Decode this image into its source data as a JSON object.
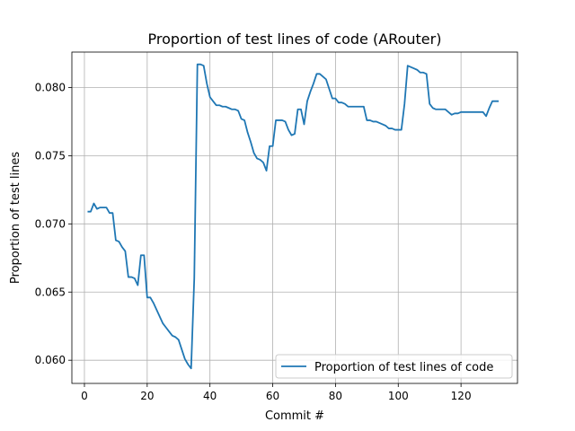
{
  "chart_data": {
    "type": "line",
    "title": "Proportion of test lines of code (ARouter)",
    "xlabel": "Commit #",
    "ylabel": "Proportion of test lines",
    "xlim": [
      -4,
      138
    ],
    "ylim": [
      0.0583,
      0.0826
    ],
    "xticks": [
      0,
      20,
      40,
      60,
      80,
      100,
      120
    ],
    "yticks": [
      0.06,
      0.065,
      0.07,
      0.075,
      0.08
    ],
    "ytick_labels": [
      "0.060",
      "0.065",
      "0.070",
      "0.075",
      "0.080"
    ],
    "grid": true,
    "legend_position": "lower-right",
    "line_color": "#1f77b4",
    "series": [
      {
        "name": "Proportion of test lines of code",
        "x": [
          1,
          2,
          3,
          4,
          5,
          6,
          7,
          8,
          9,
          10,
          11,
          12,
          13,
          14,
          15,
          16,
          17,
          18,
          19,
          20,
          21,
          22,
          23,
          24,
          25,
          26,
          27,
          28,
          29,
          30,
          31,
          32,
          33,
          34,
          35,
          36,
          37,
          38,
          39,
          40,
          41,
          42,
          43,
          44,
          45,
          46,
          47,
          48,
          49,
          50,
          51,
          52,
          53,
          54,
          55,
          56,
          57,
          58,
          59,
          60,
          61,
          62,
          63,
          64,
          65,
          66,
          67,
          68,
          69,
          70,
          71,
          72,
          73,
          74,
          75,
          76,
          77,
          78,
          79,
          80,
          81,
          82,
          83,
          84,
          85,
          86,
          87,
          88,
          89,
          90,
          91,
          92,
          93,
          94,
          95,
          96,
          97,
          98,
          99,
          100,
          101,
          102,
          103,
          104,
          105,
          106,
          107,
          108,
          109,
          110,
          111,
          112,
          113,
          114,
          115,
          116,
          117,
          118,
          119,
          120,
          121,
          122,
          123,
          124,
          125,
          126,
          127,
          128,
          129,
          130,
          131,
          132
        ],
        "y": [
          0.0709,
          0.0709,
          0.0715,
          0.0711,
          0.0712,
          0.0712,
          0.0712,
          0.0708,
          0.0708,
          0.0688,
          0.0687,
          0.0683,
          0.068,
          0.0661,
          0.0661,
          0.066,
          0.0655,
          0.0677,
          0.0677,
          0.0646,
          0.0646,
          0.0642,
          0.0637,
          0.0632,
          0.0627,
          0.0624,
          0.0621,
          0.0618,
          0.0617,
          0.0615,
          0.0608,
          0.0601,
          0.0597,
          0.0594,
          0.066,
          0.0817,
          0.0817,
          0.0816,
          0.0803,
          0.0793,
          0.079,
          0.0787,
          0.0787,
          0.0786,
          0.0786,
          0.0785,
          0.0784,
          0.0784,
          0.0783,
          0.0777,
          0.0776,
          0.0767,
          0.076,
          0.0752,
          0.0748,
          0.0747,
          0.0745,
          0.0739,
          0.0757,
          0.0757,
          0.0776,
          0.0776,
          0.0776,
          0.0775,
          0.0769,
          0.0765,
          0.0766,
          0.0784,
          0.0784,
          0.0773,
          0.079,
          0.0797,
          0.0803,
          0.081,
          0.081,
          0.0808,
          0.0806,
          0.0799,
          0.0792,
          0.0792,
          0.0789,
          0.0789,
          0.0788,
          0.0786,
          0.0786,
          0.0786,
          0.0786,
          0.0786,
          0.0786,
          0.0776,
          0.0776,
          0.0775,
          0.0775,
          0.0774,
          0.0773,
          0.0772,
          0.077,
          0.077,
          0.0769,
          0.0769,
          0.0769,
          0.0788,
          0.0816,
          0.0815,
          0.0814,
          0.0813,
          0.0811,
          0.0811,
          0.081,
          0.0788,
          0.0785,
          0.0784,
          0.0784,
          0.0784,
          0.0784,
          0.0782,
          0.078,
          0.0781,
          0.0781,
          0.0782,
          0.0782,
          0.0782,
          0.0782,
          0.0782,
          0.0782,
          0.0782,
          0.0782,
          0.0779,
          0.0785,
          0.079,
          0.079,
          0.079
        ]
      }
    ]
  }
}
